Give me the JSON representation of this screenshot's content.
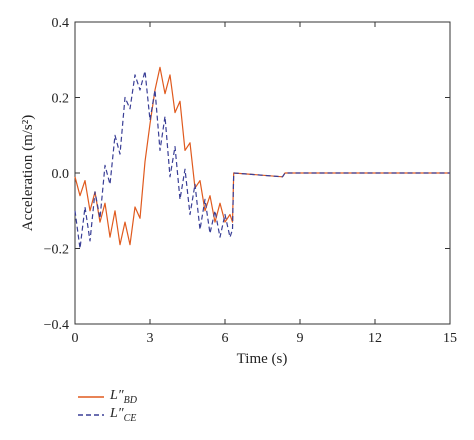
{
  "chart_data": {
    "type": "line",
    "title": "",
    "xlabel": "Time (s)",
    "ylabel": "Acceleration (m/s²)",
    "xlim": [
      0,
      15
    ],
    "ylim": [
      -0.4,
      0.4
    ],
    "x_ticks": [
      0,
      3,
      6,
      9,
      12,
      15
    ],
    "y_ticks": [
      -0.4,
      -0.2,
      0.0,
      0.2,
      0.4
    ],
    "x_tick_labels": [
      "0",
      "3",
      "6",
      "9",
      "12",
      "15"
    ],
    "y_tick_labels": [
      "−0.4",
      "−0.2",
      "0.0",
      "0.2",
      "0.4"
    ],
    "grid": false,
    "legend_position": "bottom-left",
    "series": [
      {
        "name": "L″BD",
        "label_main": "L″",
        "label_sub": "BD",
        "color": "#e05a1e",
        "dash": "solid",
        "x": [
          0,
          0.2,
          0.4,
          0.6,
          0.8,
          1.0,
          1.2,
          1.4,
          1.6,
          1.8,
          2.0,
          2.2,
          2.4,
          2.6,
          2.8,
          3.0,
          3.2,
          3.4,
          3.6,
          3.8,
          4.0,
          4.2,
          4.4,
          4.6,
          4.8,
          5.0,
          5.2,
          5.4,
          5.6,
          5.8,
          6.0,
          6.2,
          6.3,
          6.35,
          8.3,
          8.4,
          15
        ],
        "y": [
          -0.01,
          -0.06,
          -0.02,
          -0.1,
          -0.05,
          -0.13,
          -0.08,
          -0.17,
          -0.1,
          -0.19,
          -0.13,
          -0.19,
          -0.09,
          -0.12,
          0.03,
          0.13,
          0.22,
          0.28,
          0.21,
          0.26,
          0.16,
          0.19,
          0.06,
          0.08,
          -0.04,
          -0.02,
          -0.1,
          -0.06,
          -0.13,
          -0.08,
          -0.13,
          -0.11,
          -0.13,
          0.0,
          -0.01,
          0.0,
          0.0
        ]
      },
      {
        "name": "L″CE",
        "label_main": "L″",
        "label_sub": "CE",
        "color": "#3a3f96",
        "dash": "dashed",
        "x": [
          0,
          0.2,
          0.4,
          0.6,
          0.8,
          1.0,
          1.2,
          1.4,
          1.6,
          1.8,
          2.0,
          2.2,
          2.4,
          2.6,
          2.8,
          3.0,
          3.2,
          3.4,
          3.6,
          3.8,
          4.0,
          4.2,
          4.4,
          4.6,
          4.8,
          5.0,
          5.2,
          5.4,
          5.6,
          5.8,
          6.0,
          6.2,
          6.3,
          6.35,
          8.3,
          8.4,
          15
        ],
        "y": [
          -0.1,
          -0.2,
          -0.09,
          -0.18,
          -0.05,
          -0.12,
          0.02,
          -0.03,
          0.1,
          0.05,
          0.2,
          0.17,
          0.26,
          0.22,
          0.27,
          0.14,
          0.22,
          0.06,
          0.15,
          -0.01,
          0.07,
          -0.07,
          0.01,
          -0.11,
          -0.03,
          -0.15,
          -0.07,
          -0.16,
          -0.1,
          -0.17,
          -0.11,
          -0.17,
          -0.15,
          0.0,
          -0.01,
          0.0,
          0.0
        ]
      }
    ]
  }
}
